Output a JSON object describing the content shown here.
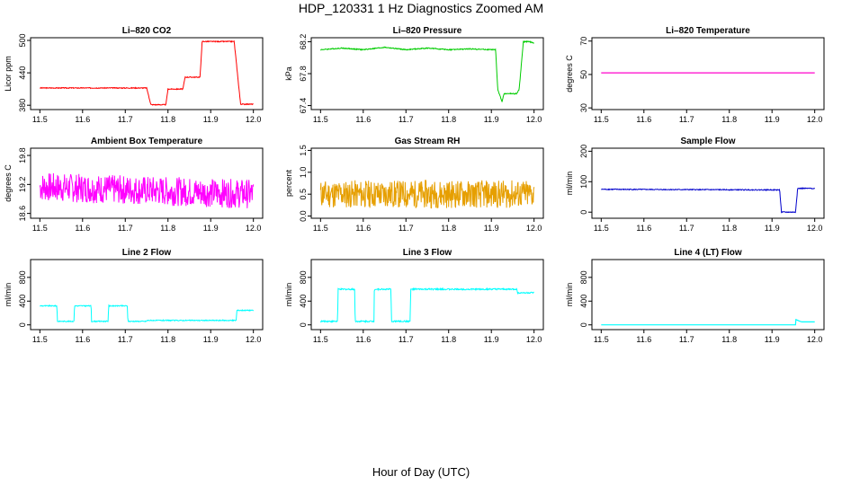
{
  "figure": {
    "title": "HDP_120331  1 Hz Diagnostics Zoomed AM",
    "xlabel": "Hour of Day (UTC)"
  },
  "chart_data": [
    {
      "id": "co2",
      "type": "line",
      "title": "Li–820 CO2",
      "ylabel": "Licor ppm",
      "color": "#ff0000",
      "xlim": [
        11.5,
        12.0
      ],
      "ylim": [
        372,
        505
      ],
      "xticks": [
        "11.5",
        "11.6",
        "11.7",
        "11.8",
        "11.9",
        "12.0"
      ],
      "yticks": [
        380,
        440,
        500
      ],
      "ytick_labels": [
        "380",
        "440",
        "500"
      ],
      "series": [
        {
          "name": "",
          "noise": 0.8,
          "x": [
            11.5,
            11.75,
            11.76,
            11.795,
            11.8,
            11.81,
            11.835,
            11.84,
            11.875,
            11.88,
            11.955,
            11.97,
            12.0
          ],
          "y": [
            412,
            412,
            381,
            381,
            410,
            410,
            410,
            432,
            432,
            498,
            498,
            382,
            382
          ]
        }
      ]
    },
    {
      "id": "pressure",
      "type": "line",
      "title": "Li–820 Pressure",
      "ylabel": "kPa",
      "color": "#00cc00",
      "xlim": [
        11.5,
        12.0
      ],
      "ylim": [
        67.35,
        68.25
      ],
      "xticks": [
        "11.5",
        "11.6",
        "11.7",
        "11.8",
        "11.9",
        "12.0"
      ],
      "yticks": [
        67.4,
        67.8,
        68.2
      ],
      "ytick_labels": [
        "67.4",
        "67.8",
        "68.2"
      ],
      "series": [
        {
          "name": "",
          "noise": 0.006,
          "x": [
            11.5,
            11.55,
            11.6,
            11.65,
            11.7,
            11.75,
            11.8,
            11.85,
            11.9,
            11.91,
            11.915,
            11.925,
            11.93,
            11.96,
            11.965,
            11.975,
            11.99,
            12.0
          ],
          "y": [
            68.1,
            68.12,
            68.1,
            68.13,
            68.1,
            68.12,
            68.1,
            68.11,
            68.1,
            68.1,
            67.6,
            67.45,
            67.55,
            67.55,
            67.6,
            68.2,
            68.2,
            68.18
          ]
        }
      ]
    },
    {
      "id": "temp",
      "type": "line",
      "title": "Li–820 Temperature",
      "ylabel": "degrees C",
      "color": "#ff00cc",
      "xlim": [
        11.5,
        12.0
      ],
      "ylim": [
        29,
        72
      ],
      "xticks": [
        "11.5",
        "11.6",
        "11.7",
        "11.8",
        "11.9",
        "12.0"
      ],
      "yticks": [
        30,
        50,
        70
      ],
      "ytick_labels": [
        "30",
        "50",
        "70"
      ],
      "series": [
        {
          "name": "",
          "noise": 0,
          "x": [
            11.5,
            12.0
          ],
          "y": [
            51,
            51
          ]
        }
      ]
    },
    {
      "id": "ambient",
      "type": "line",
      "title": "Ambient Box Temperature",
      "ylabel": "degrees C",
      "color": "#ff00ff",
      "xlim": [
        11.5,
        12.0
      ],
      "ylim": [
        18.5,
        19.95
      ],
      "xticks": [
        "11.5",
        "11.6",
        "11.7",
        "11.8",
        "11.9",
        "12.0"
      ],
      "yticks": [
        18.6,
        19.2,
        19.8
      ],
      "ytick_labels": [
        "18.6",
        "19.2",
        "19.8"
      ],
      "series": [
        {
          "name": "",
          "noise": 0.3,
          "seed": 7,
          "x": [
            11.5,
            12.0
          ],
          "y": [
            19.15,
            19.0
          ]
        }
      ]
    },
    {
      "id": "rh",
      "type": "line",
      "title": "Gas Stream RH",
      "ylabel": "percent",
      "color": "#e69f00",
      "xlim": [
        11.5,
        12.0
      ],
      "ylim": [
        -0.05,
        1.55
      ],
      "xticks": [
        "11.5",
        "11.6",
        "11.7",
        "11.8",
        "11.9",
        "12.0"
      ],
      "yticks": [
        0.0,
        0.5,
        1.0,
        1.5
      ],
      "ytick_labels": [
        "0.0",
        "0.5",
        "1.0",
        "1.5"
      ],
      "series": [
        {
          "name": "",
          "noise": 0.32,
          "seed": 11,
          "x": [
            11.5,
            12.0
          ],
          "y": [
            0.5,
            0.5
          ]
        }
      ]
    },
    {
      "id": "sample",
      "type": "line",
      "title": "Sample Flow",
      "ylabel": "ml/min",
      "color": "#0000cc",
      "xlim": [
        11.5,
        12.0
      ],
      "ylim": [
        -20,
        210
      ],
      "xticks": [
        "11.5",
        "11.6",
        "11.7",
        "11.8",
        "11.9",
        "12.0"
      ],
      "yticks": [
        0,
        100,
        200
      ],
      "ytick_labels": [
        "0",
        "100",
        "200"
      ],
      "series": [
        {
          "name": "",
          "noise": 1.5,
          "x": [
            11.5,
            11.918,
            11.922,
            11.955,
            11.96,
            12.0
          ],
          "y": [
            75,
            73,
            0,
            0,
            78,
            78
          ]
        }
      ]
    },
    {
      "id": "line2",
      "type": "line",
      "title": "Line 2 Flow",
      "ylabel": "ml/min",
      "color": "#00ffff",
      "xlim": [
        11.5,
        12.0
      ],
      "ylim": [
        -80,
        1100
      ],
      "xticks": [
        "11.5",
        "11.6",
        "11.7",
        "11.8",
        "11.9",
        "12.0"
      ],
      "yticks": [
        0,
        400,
        800
      ],
      "ytick_labels": [
        "0",
        "400",
        "800"
      ],
      "series": [
        {
          "name": "",
          "noise": 8,
          "x": [
            11.5,
            11.54,
            11.541,
            11.58,
            11.581,
            11.62,
            11.621,
            11.66,
            11.661,
            11.705,
            11.706,
            11.75,
            11.751,
            11.96,
            11.961,
            12.0
          ],
          "y": [
            320,
            320,
            60,
            60,
            320,
            320,
            60,
            60,
            320,
            320,
            60,
            60,
            75,
            75,
            245,
            245
          ]
        }
      ]
    },
    {
      "id": "line3",
      "type": "line",
      "title": "Line 3 Flow",
      "ylabel": "ml/min",
      "color": "#00ffff",
      "xlim": [
        11.5,
        12.0
      ],
      "ylim": [
        -80,
        1100
      ],
      "xticks": [
        "11.5",
        "11.6",
        "11.7",
        "11.8",
        "11.9",
        "12.0"
      ],
      "yticks": [
        0,
        400,
        800
      ],
      "ytick_labels": [
        "0",
        "400",
        "800"
      ],
      "series": [
        {
          "name": "",
          "noise": 12,
          "x": [
            11.5,
            11.54,
            11.541,
            11.58,
            11.581,
            11.625,
            11.626,
            11.665,
            11.666,
            11.71,
            11.711,
            11.96,
            11.961,
            12.0
          ],
          "y": [
            60,
            60,
            600,
            600,
            60,
            60,
            600,
            600,
            60,
            60,
            600,
            600,
            540,
            540
          ]
        }
      ]
    },
    {
      "id": "line4",
      "type": "line",
      "title": "Line 4 (LT) Flow",
      "ylabel": "ml/min",
      "color": "#00ffff",
      "xlim": [
        11.5,
        12.0
      ],
      "ylim": [
        -80,
        1100
      ],
      "xticks": [
        "11.5",
        "11.6",
        "11.7",
        "11.8",
        "11.9",
        "12.0"
      ],
      "yticks": [
        0,
        400,
        800
      ],
      "ytick_labels": [
        "0",
        "400",
        "800"
      ],
      "series": [
        {
          "name": "",
          "noise": 0,
          "x": [
            11.5,
            11.955,
            11.956,
            11.965,
            11.97,
            12.0
          ],
          "y": [
            0,
            0,
            90,
            60,
            50,
            50
          ]
        }
      ]
    }
  ]
}
